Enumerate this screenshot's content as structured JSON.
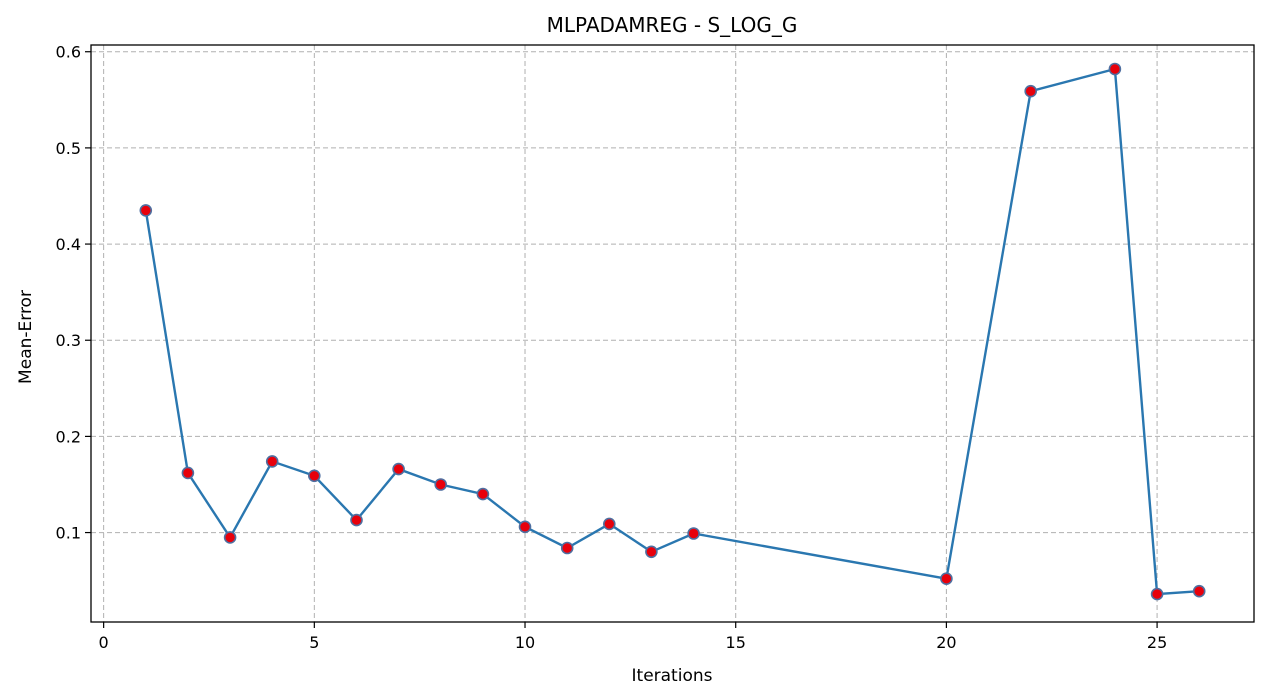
{
  "chart_data": {
    "type": "line",
    "title": "MLPADAMREG - S_LOG_G",
    "xlabel": "Iterations",
    "ylabel": "Mean-Error",
    "xlim": [
      -0.3,
      27.3
    ],
    "ylim": [
      0.007,
      0.607
    ],
    "xticks": [
      0,
      5,
      10,
      15,
      20,
      25
    ],
    "yticks": [
      0.1,
      0.2,
      0.3,
      0.4,
      0.5,
      0.6
    ],
    "xtick_labels": [
      "0",
      "5",
      "10",
      "15",
      "20",
      "25"
    ],
    "ytick_labels": [
      "0.1",
      "0.2",
      "0.3",
      "0.4",
      "0.5",
      "0.6"
    ],
    "grid": true,
    "line_color": "#2a77b0",
    "marker_color": "#e8000b",
    "marker_edge_color": "#4f6fa0",
    "x": [
      1,
      2,
      3,
      4,
      5,
      6,
      7,
      8,
      9,
      10,
      11,
      12,
      13,
      14,
      20,
      22,
      24,
      25,
      26
    ],
    "y": [
      0.435,
      0.162,
      0.095,
      0.174,
      0.159,
      0.113,
      0.166,
      0.15,
      0.14,
      0.106,
      0.084,
      0.109,
      0.08,
      0.099,
      0.052,
      0.559,
      0.582,
      0.036,
      0.039
    ]
  }
}
